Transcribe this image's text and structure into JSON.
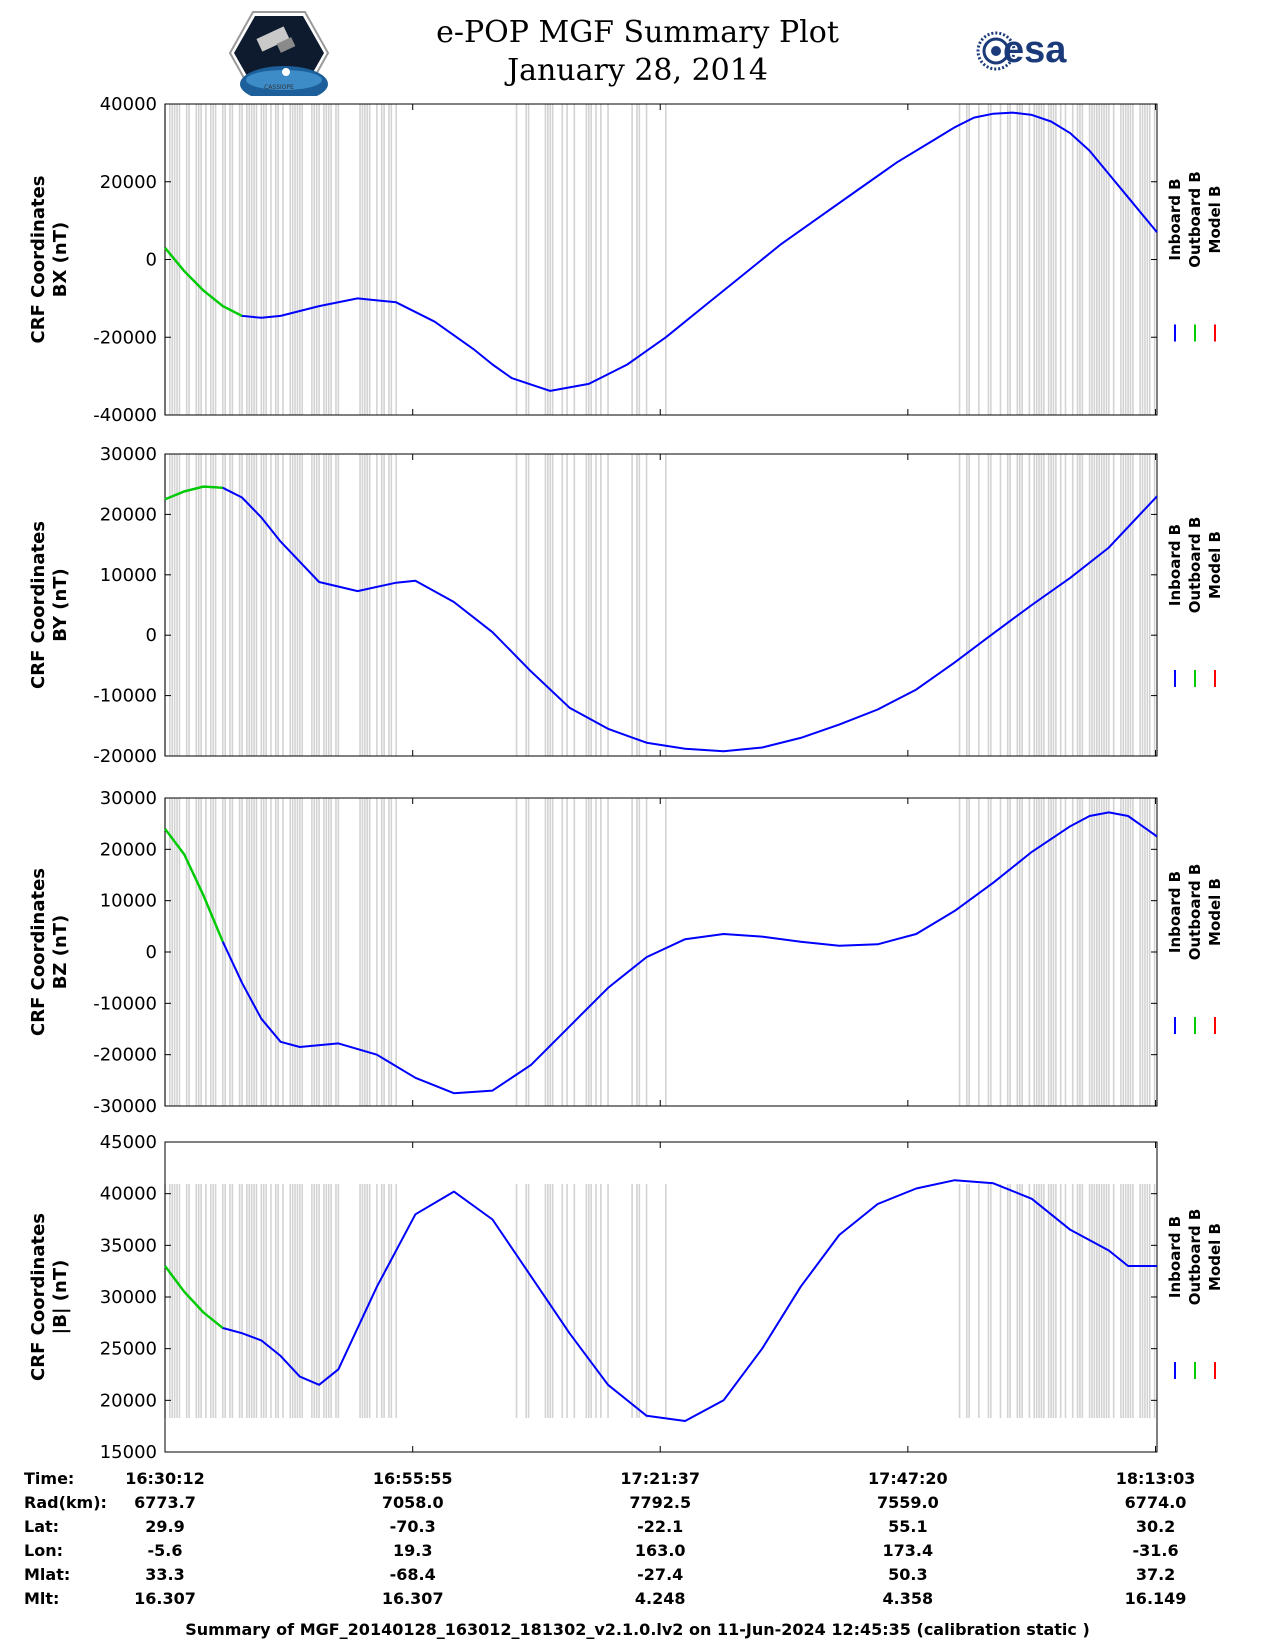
{
  "header": {
    "title": "e-POP MGF Summary Plot",
    "date": "January 28, 2014",
    "esa_logo_text": "esa",
    "mission_logo_caption": "CASSIOPE"
  },
  "footer": "Summary of MGF_20140128_163012_181302_v2.1.0.lv2 on 11-Jun-2024 12:45:35 (calibration static )",
  "colors": {
    "inboard": "#0000ff",
    "outboard": "#00cc00",
    "model": "#ff0000",
    "gaps": "#d3d3d3"
  },
  "legend": [
    "Inboard B",
    "Outboard B",
    "Model B"
  ],
  "chart_data": [
    {
      "type": "line",
      "ylabel": [
        "CRF Coordinates",
        "BX (nT)"
      ],
      "ylim": [
        -40000,
        40000
      ],
      "yticks": [
        40000,
        20000,
        0,
        -20000,
        -40000
      ],
      "ytick_labels": [
        "40000",
        "20000",
        "0",
        "-20000",
        "-40000"
      ],
      "x_minutes": [
        0,
        2,
        4,
        6,
        8,
        10,
        12,
        16,
        20,
        24,
        28,
        32,
        34,
        36,
        40,
        44,
        48,
        52,
        56,
        60,
        64,
        68,
        72,
        76,
        80,
        82,
        84,
        86,
        88,
        90,
        92,
        94,
        96,
        98,
        100,
        103
      ],
      "series": [
        {
          "name": "Inboard B",
          "values": [
            3000,
            -3000,
            -8000,
            -12000,
            -14500,
            -15000,
            -14500,
            -12000,
            -10000,
            -11000,
            -16000,
            -23000,
            -27000,
            -30500,
            -33800,
            -32000,
            -27000,
            -20000,
            -12000,
            -4000,
            4000,
            11000,
            18000,
            25000,
            31000,
            34000,
            36500,
            37500,
            37800,
            37200,
            35500,
            32500,
            28000,
            22000,
            16000,
            7000
          ]
        },
        {
          "name": "Outboard B",
          "x_end": 6,
          "values": [
            3000,
            -3000,
            -8000,
            -12000,
            -14500
          ]
        },
        {
          "name": "Model B",
          "values": []
        }
      ]
    },
    {
      "type": "line",
      "ylabel": [
        "CRF Coordinates",
        "BY (nT)"
      ],
      "ylim": [
        -20000,
        30000
      ],
      "yticks": [
        30000,
        20000,
        10000,
        0,
        -10000,
        -20000
      ],
      "ytick_labels": [
        "30000",
        "20000",
        "10000",
        "0",
        "-10000",
        "-20000"
      ],
      "x_minutes": [
        0,
        2,
        4,
        6,
        8,
        10,
        12,
        16,
        20,
        24,
        26,
        30,
        34,
        38,
        42,
        46,
        50,
        54,
        58,
        62,
        66,
        70,
        74,
        78,
        82,
        86,
        90,
        94,
        98,
        103
      ],
      "series": [
        {
          "name": "Inboard B",
          "values": [
            22500,
            23800,
            24600,
            24400,
            22800,
            19500,
            15500,
            8800,
            7300,
            8700,
            9000,
            5500,
            500,
            -6000,
            -12000,
            -15500,
            -17800,
            -18800,
            -19200,
            -18600,
            -17000,
            -14800,
            -12300,
            -9000,
            -4500,
            300,
            5000,
            9500,
            14500,
            23000
          ]
        },
        {
          "name": "Outboard B",
          "x_end": 5,
          "values": [
            22500,
            23800,
            24600,
            24400
          ]
        },
        {
          "name": "Model B",
          "values": []
        }
      ]
    },
    {
      "type": "line",
      "ylabel": [
        "CRF Coordinates",
        "BZ (nT)"
      ],
      "ylim": [
        -30000,
        30000
      ],
      "yticks": [
        30000,
        20000,
        10000,
        0,
        -10000,
        -20000,
        -30000
      ],
      "ytick_labels": [
        "30000",
        "20000",
        "10000",
        "0",
        "-10000",
        "-20000",
        "-30000"
      ],
      "x_minutes": [
        0,
        2,
        4,
        6,
        8,
        10,
        12,
        14,
        18,
        22,
        26,
        30,
        34,
        38,
        42,
        46,
        50,
        54,
        58,
        62,
        66,
        70,
        74,
        78,
        82,
        86,
        90,
        94,
        96,
        98,
        100,
        103
      ],
      "series": [
        {
          "name": "Inboard B",
          "values": [
            24000,
            19000,
            11000,
            2000,
            -6000,
            -13000,
            -17500,
            -18500,
            -17800,
            -20000,
            -24500,
            -27500,
            -27000,
            -22000,
            -14500,
            -7000,
            -1000,
            2500,
            3500,
            3000,
            2000,
            1200,
            1500,
            3500,
            8000,
            13500,
            19500,
            24500,
            26500,
            27200,
            26500,
            22500
          ]
        },
        {
          "name": "Outboard B",
          "x_end": 6,
          "values": [
            24000,
            19000,
            11000,
            2000
          ]
        },
        {
          "name": "Model B",
          "values": []
        }
      ]
    },
    {
      "type": "line",
      "ylabel": [
        "CRF Coordinates",
        "|B| (nT)"
      ],
      "ylim": [
        15000,
        45000
      ],
      "yticks": [
        45000,
        40000,
        35000,
        30000,
        25000,
        20000,
        15000
      ],
      "ytick_labels": [
        "45000",
        "40000",
        "35000",
        "30000",
        "25000",
        "20000",
        "15000"
      ],
      "x_minutes": [
        0,
        2,
        4,
        6,
        8,
        10,
        12,
        14,
        16,
        18,
        22,
        26,
        30,
        34,
        38,
        42,
        46,
        50,
        54,
        58,
        62,
        66,
        70,
        74,
        78,
        82,
        86,
        90,
        94,
        98,
        100,
        103
      ],
      "series": [
        {
          "name": "Inboard B",
          "values": [
            33000,
            30500,
            28500,
            27000,
            26500,
            25800,
            24300,
            22300,
            21500,
            23000,
            31000,
            38000,
            40200,
            37500,
            32000,
            26500,
            21500,
            18500,
            18000,
            20000,
            25000,
            31000,
            36000,
            39000,
            40500,
            41300,
            41000,
            39500,
            36500,
            34500,
            33000,
            33000
          ]
        },
        {
          "name": "Outboard B",
          "x_end": 6,
          "values": [
            33000,
            30500,
            28500,
            27000
          ]
        },
        {
          "name": "Model B",
          "values": []
        }
      ]
    }
  ],
  "x_axis": {
    "range_minutes": [
      0,
      103
    ],
    "tick_minutes": [
      0,
      25.72,
      51.42,
      77.13,
      102.85
    ]
  },
  "ephemeris": {
    "labels": [
      "Time:",
      "Rad(km):",
      "Lat:",
      "Lon:",
      "Mlat:",
      "Mlt:"
    ],
    "columns": [
      [
        "16:30:12",
        "6773.7",
        "29.9",
        "-5.6",
        "33.3",
        "16.307"
      ],
      [
        "16:55:55",
        "7058.0",
        "-70.3",
        "19.3",
        "-68.4",
        "16.307"
      ],
      [
        "17:21:37",
        "7792.5",
        "-22.1",
        "163.0",
        "-27.4",
        "4.248"
      ],
      [
        "17:47:20",
        "7559.0",
        "55.1",
        "173.4",
        "50.3",
        "4.358"
      ],
      [
        "18:13:03",
        "6774.0",
        "30.2",
        "-31.6",
        "37.2",
        "16.149"
      ]
    ]
  }
}
